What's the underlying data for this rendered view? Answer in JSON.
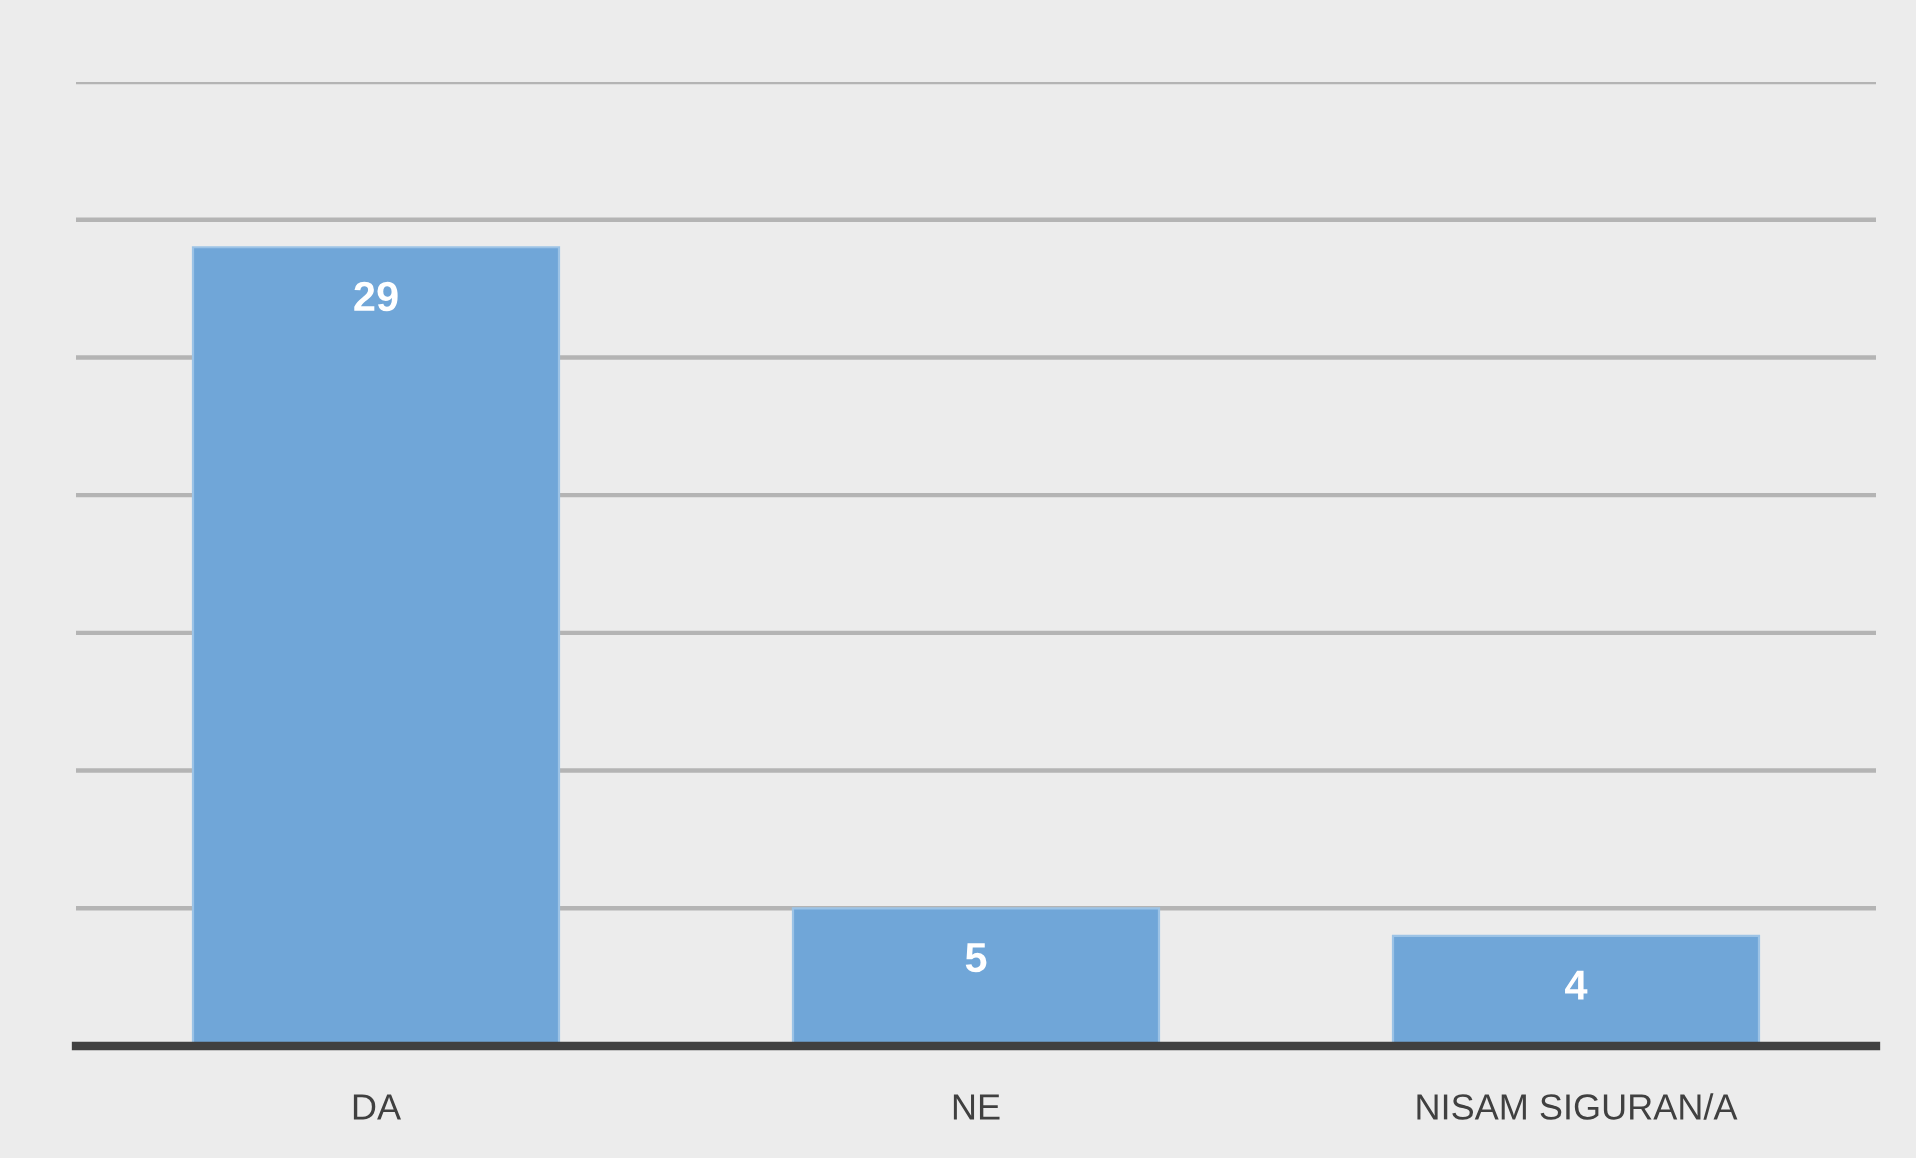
{
  "chart_data": {
    "type": "bar",
    "categories": [
      "DA",
      "NE",
      "NISAM SIGURAN/A"
    ],
    "values": [
      29,
      5,
      4
    ],
    "color": "#70a6d8",
    "ylim": [
      0,
      35
    ],
    "yticks": [
      {
        "value": 0,
        "label": null
      },
      {
        "value": 5,
        "label": null
      },
      {
        "value": 10,
        "label": null
      },
      {
        "value": 15,
        "label": null
      },
      {
        "value": 20,
        "label": null
      },
      {
        "value": 25,
        "label": null
      },
      {
        "value": 30,
        "label": null
      },
      {
        "value": 35,
        "label": null
      }
    ],
    "grid": "y",
    "tick_labels": "x",
    "data_labels": true
  }
}
